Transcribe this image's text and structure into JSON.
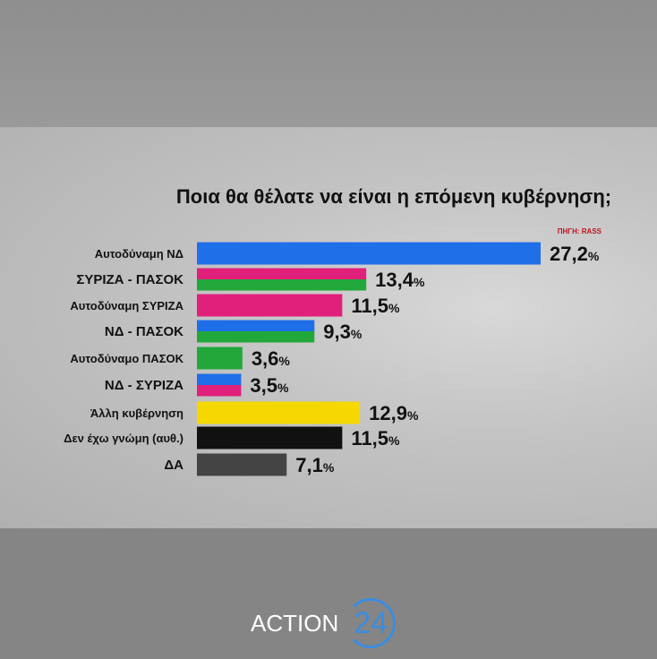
{
  "chart_data": {
    "type": "bar",
    "title": "Ποια θα θέλατε να είναι η επόμενη κυβέρνηση;",
    "source": "ΠΗΓΗ: RASS",
    "categories": [
      "Αυτοδύναμη ΝΔ",
      "ΣΥΡΙΖΑ - ΠΑΣΟΚ",
      "Αυτοδύναμη ΣΥΡΙΖΑ",
      "ΝΔ - ΠΑΣΟΚ",
      "Αυτοδύναμο ΠΑΣΟΚ",
      "ΝΔ - ΣΥΡΙΖΑ",
      "Άλλη κυβέρνηση",
      "Δεν έχω γνώμη (αυθ.)",
      "ΔΑ"
    ],
    "values": [
      27.2,
      13.4,
      11.5,
      9.3,
      3.6,
      3.5,
      12.9,
      11.5,
      7.1
    ],
    "value_labels": [
      "27,2",
      "13,4",
      "11,5",
      "9,3",
      "3,6",
      "3,5",
      "12,9",
      "11,5",
      "7,1"
    ],
    "unit": "%",
    "bar_colors": [
      [
        "#1f6fe8"
      ],
      [
        "#e0207a",
        "#22a83a"
      ],
      [
        "#e0207a"
      ],
      [
        "#1f6fe8",
        "#22a83a"
      ],
      [
        "#22a83a"
      ],
      [
        "#1f6fe8",
        "#e0207a"
      ],
      [
        "#f5d800"
      ],
      [
        "#111111"
      ],
      [
        "#444444"
      ]
    ],
    "xlim": [
      0,
      27.2
    ]
  },
  "brand": {
    "name": "ACTION",
    "number": "24"
  }
}
